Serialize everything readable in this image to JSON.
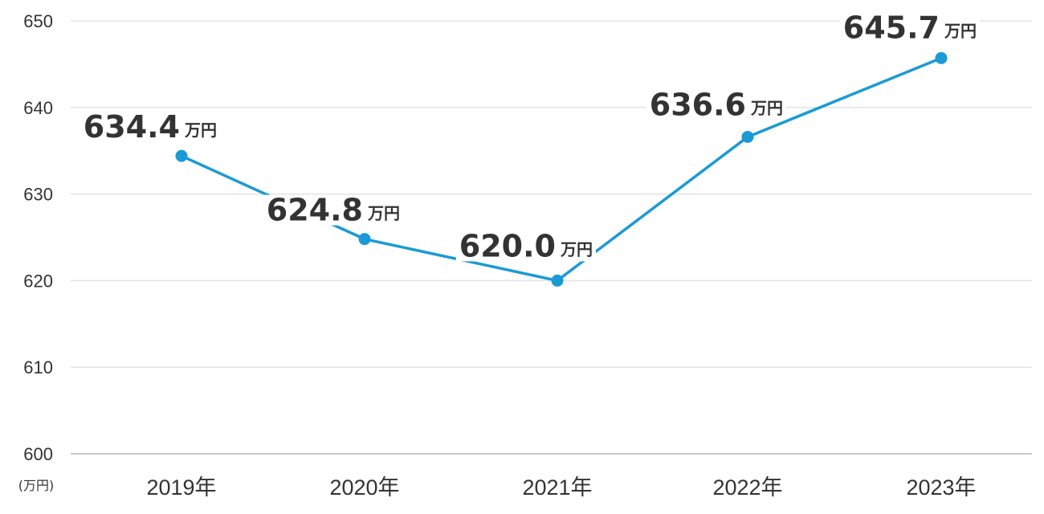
{
  "chart_data": {
    "type": "line",
    "categories": [
      "2019年",
      "2020年",
      "2021年",
      "2022年",
      "2023年"
    ],
    "values": [
      634.4,
      624.8,
      620.0,
      636.6,
      645.7
    ],
    "value_labels": [
      "634.4",
      "624.8",
      "620.0",
      "636.6",
      "645.7"
    ],
    "value_unit": "万円",
    "y_axis_unit": "(万円)",
    "ylim": [
      600,
      650
    ],
    "yticks": [
      600,
      610,
      620,
      630,
      640,
      650
    ],
    "grid": true,
    "legend": "none",
    "line_color": "#1a9ad6"
  }
}
